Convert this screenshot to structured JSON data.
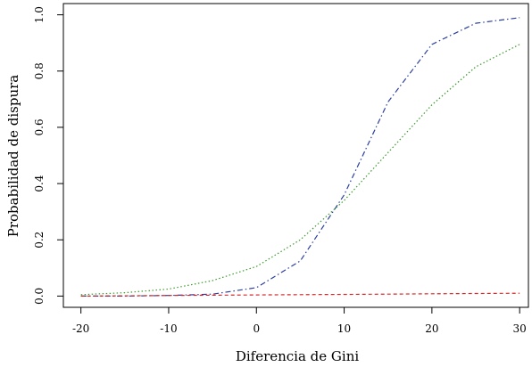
{
  "chart_data": {
    "type": "line",
    "title": "",
    "xlabel": "Diferencia de Gini",
    "ylabel": "Probabilidad de dispura",
    "xlim": [
      -22,
      31
    ],
    "ylim": [
      -0.04,
      1.04
    ],
    "xticks": [
      -20,
      -10,
      0,
      10,
      20,
      30
    ],
    "xtick_labels": [
      "-20",
      "-10",
      "0",
      "10",
      "20",
      "30"
    ],
    "yticks": [
      0,
      0.2,
      0.4,
      0.6,
      0.8,
      1.0
    ],
    "ytick_labels": [
      "0.0",
      "0.2",
      "0.4",
      "0.6",
      "0.8",
      "1.0"
    ],
    "grid": false,
    "legend": "none",
    "x": [
      -20,
      -15,
      -10,
      -5,
      0,
      5,
      10,
      15,
      20,
      25,
      30
    ],
    "series": [
      {
        "color": "#2b3f9e",
        "dash": "dashdot",
        "values": [
          0.0,
          0.0,
          0.002,
          0.007,
          0.03,
          0.125,
          0.36,
          0.69,
          0.895,
          0.97,
          0.99
        ]
      },
      {
        "color": "#3c9a2e",
        "dash": "dotted",
        "values": [
          0.005,
          0.012,
          0.025,
          0.055,
          0.105,
          0.2,
          0.34,
          0.51,
          0.68,
          0.815,
          0.895
        ]
      },
      {
        "color": "#d42a2a",
        "dash": "dashed",
        "values": [
          0.0,
          0.001,
          0.002,
          0.003,
          0.004,
          0.005,
          0.006,
          0.007,
          0.008,
          0.009,
          0.01
        ]
      }
    ]
  }
}
